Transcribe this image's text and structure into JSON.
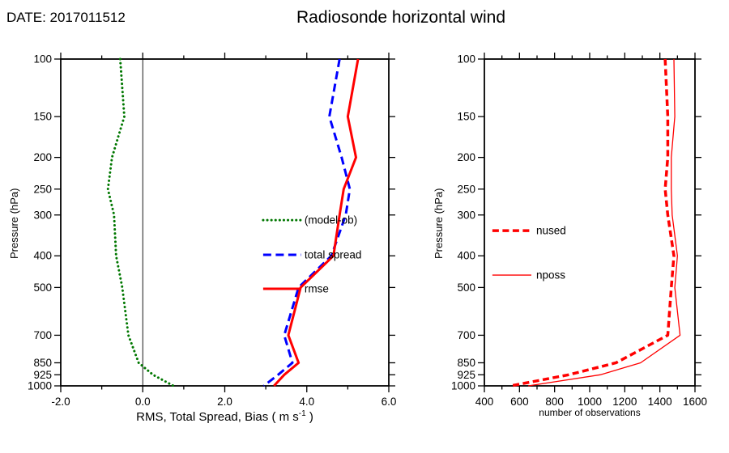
{
  "header": {
    "date": "DATE: 2017011512",
    "title": "Radiosonde horizontal wind"
  },
  "chart_data": [
    {
      "type": "line",
      "panel": "left",
      "ylabel": "Pressure (hPa)",
      "xlabel": {
        "pre": "RMS, Total Spread, Bias ( m s",
        "sup": "-1",
        "post": " )"
      },
      "xlim": [
        -2.0,
        6.0
      ],
      "xticks": [
        "-2.0",
        "0.0",
        "2.0",
        "4.0",
        "6.0"
      ],
      "xtick_values": [
        -2,
        0,
        2,
        4,
        6
      ],
      "x_minor_step": 1,
      "yscale": "log",
      "ylim": [
        100,
        1000
      ],
      "pressure_levels": [
        100,
        150,
        200,
        250,
        300,
        400,
        500,
        700,
        850,
        925,
        1000
      ],
      "zero_line": true,
      "grid": false,
      "legend_position": "inside-middle-right",
      "series": [
        {
          "name": "(model-ob)",
          "color": "#007700",
          "style": "dotted",
          "width": 3,
          "values": [
            -0.55,
            -0.45,
            -0.75,
            -0.85,
            -0.7,
            -0.65,
            -0.5,
            -0.35,
            -0.1,
            0.25,
            0.75
          ]
        },
        {
          "name": "total spread",
          "color": "#0000ff",
          "style": "dashed",
          "width": 3,
          "values": [
            4.8,
            4.55,
            4.85,
            5.05,
            4.95,
            4.6,
            3.8,
            3.45,
            3.65,
            3.3,
            2.95
          ]
        },
        {
          "name": "rmse",
          "color": "#ff0000",
          "style": "solid",
          "width": 3,
          "values": [
            5.25,
            5.0,
            5.2,
            4.9,
            4.8,
            4.65,
            3.85,
            3.55,
            3.8,
            3.45,
            3.2
          ]
        }
      ]
    },
    {
      "type": "line",
      "panel": "right",
      "ylabel": "Pressure (hPa)",
      "xlabel": "number of observations",
      "xlim": [
        400,
        1600
      ],
      "xticks": [
        "400",
        "600",
        "800",
        "1000",
        "1200",
        "1400",
        "1600"
      ],
      "xtick_values": [
        400,
        600,
        800,
        1000,
        1200,
        1400,
        1600
      ],
      "x_minor_step": 100,
      "yscale": "log",
      "ylim": [
        100,
        1000
      ],
      "pressure_levels": [
        100,
        150,
        200,
        250,
        300,
        400,
        500,
        700,
        850,
        925,
        1000
      ],
      "zero_line": false,
      "grid": false,
      "legend_position": "inside-middle-left",
      "series": [
        {
          "name": "nused",
          "color": "#ff0000",
          "style": "dashed",
          "width": 3.5,
          "values": [
            1430,
            1445,
            1445,
            1430,
            1445,
            1480,
            1465,
            1445,
            1150,
            880,
            550
          ]
        },
        {
          "name": "nposs",
          "color": "#ff0000",
          "style": "solid",
          "width": 1.3,
          "values": [
            1480,
            1485,
            1465,
            1465,
            1470,
            1500,
            1485,
            1515,
            1290,
            1060,
            650
          ]
        }
      ]
    }
  ]
}
